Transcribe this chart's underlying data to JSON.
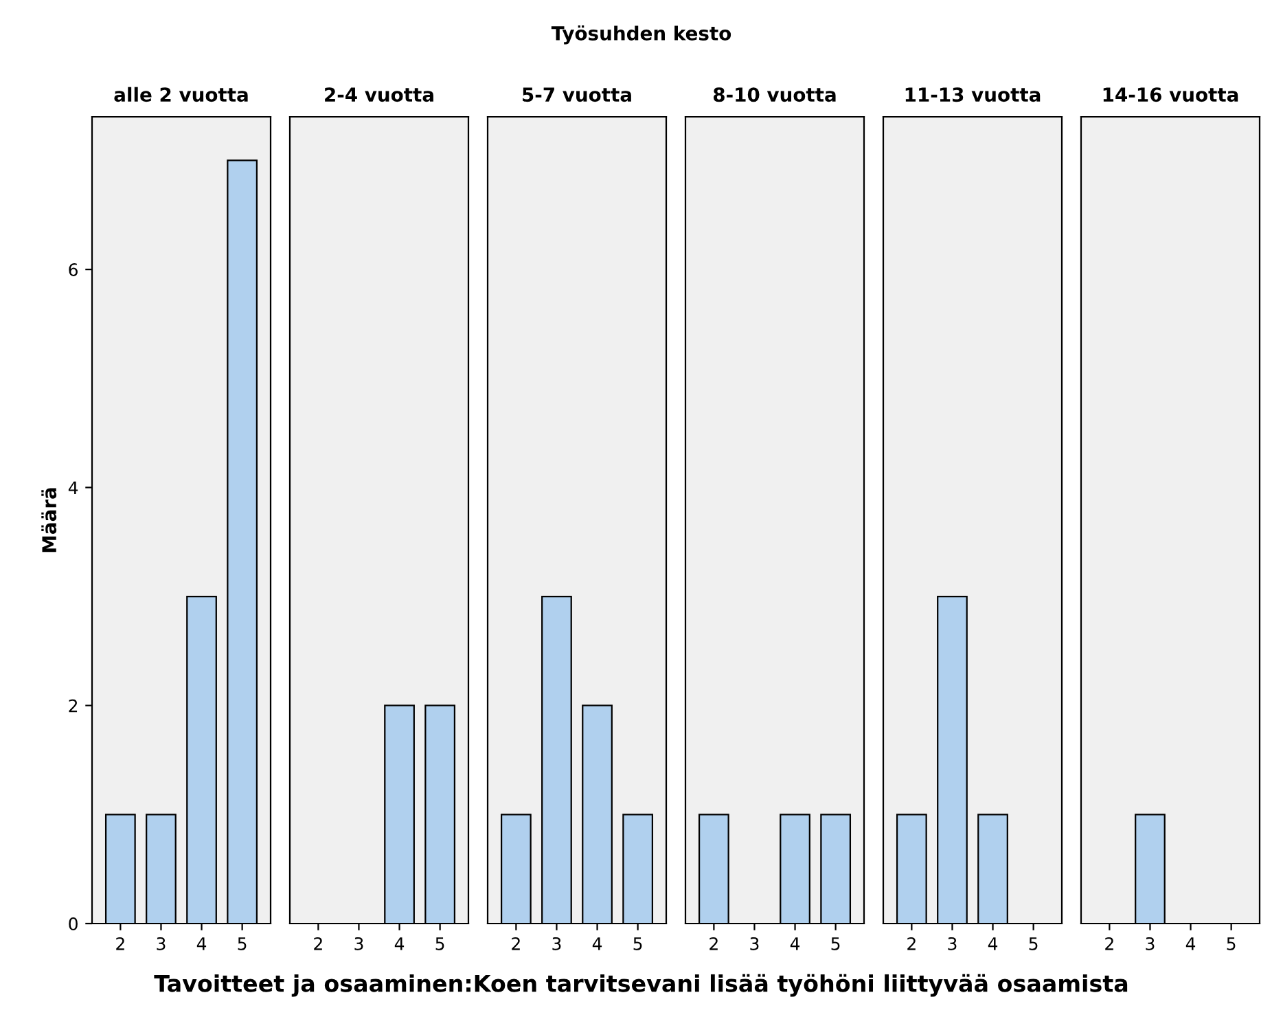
{
  "chart_data": [
    {
      "type": "bar",
      "title": "alle 2 vuotta",
      "annotations": [
        "Työsuhden kesto"
      ],
      "xlabel": "Tavoitteet ja osaaminen:Koen tarvitsevani lisää työhöni liittyvää osaamista",
      "ylabel": "Määrä",
      "categories": [
        "2",
        "3",
        "4",
        "5"
      ],
      "values": [
        1,
        1,
        3,
        7
      ],
      "color": "#b0d0ee",
      "ylim": [
        0,
        7.4
      ],
      "yticks": [
        0,
        2,
        4,
        6
      ],
      "grid": false
    },
    {
      "type": "bar",
      "title": "2-4 vuotta",
      "categories": [
        "2",
        "3",
        "4",
        "5"
      ],
      "values": [
        0,
        0,
        2,
        2
      ],
      "color": "#b0d0ee",
      "ylim": [
        0,
        7.4
      ],
      "yticks": [
        0,
        2,
        4,
        6
      ],
      "grid": false,
      "tick_labels": "x"
    },
    {
      "type": "bar",
      "title": "5-7 vuotta",
      "categories": [
        "2",
        "3",
        "4",
        "5"
      ],
      "values": [
        1,
        3,
        2,
        1
      ],
      "color": "#b0d0ee",
      "ylim": [
        0,
        7.4
      ],
      "yticks": [
        0,
        2,
        4,
        6
      ],
      "grid": false,
      "tick_labels": "x"
    },
    {
      "type": "bar",
      "title": "8-10 vuotta",
      "categories": [
        "2",
        "3",
        "4",
        "5"
      ],
      "values": [
        1,
        0,
        1,
        1
      ],
      "color": "#b0d0ee",
      "ylim": [
        0,
        7.4
      ],
      "yticks": [
        0,
        2,
        4,
        6
      ],
      "grid": false,
      "tick_labels": "x"
    },
    {
      "type": "bar",
      "title": "11-13 vuotta",
      "categories": [
        "2",
        "3",
        "4",
        "5"
      ],
      "values": [
        1,
        3,
        1,
        0
      ],
      "color": "#b0d0ee",
      "ylim": [
        0,
        7.4
      ],
      "yticks": [
        0,
        2,
        4,
        6
      ],
      "grid": false,
      "tick_labels": "x"
    },
    {
      "type": "bar",
      "title": "14-16 vuotta",
      "categories": [
        "2",
        "3",
        "4",
        "5"
      ],
      "values": [
        0,
        1,
        0,
        0
      ],
      "color": "#b0d0ee",
      "ylim": [
        0,
        7.4
      ],
      "yticks": [
        0,
        2,
        4,
        6
      ],
      "grid": false,
      "tick_labels": "x"
    }
  ]
}
